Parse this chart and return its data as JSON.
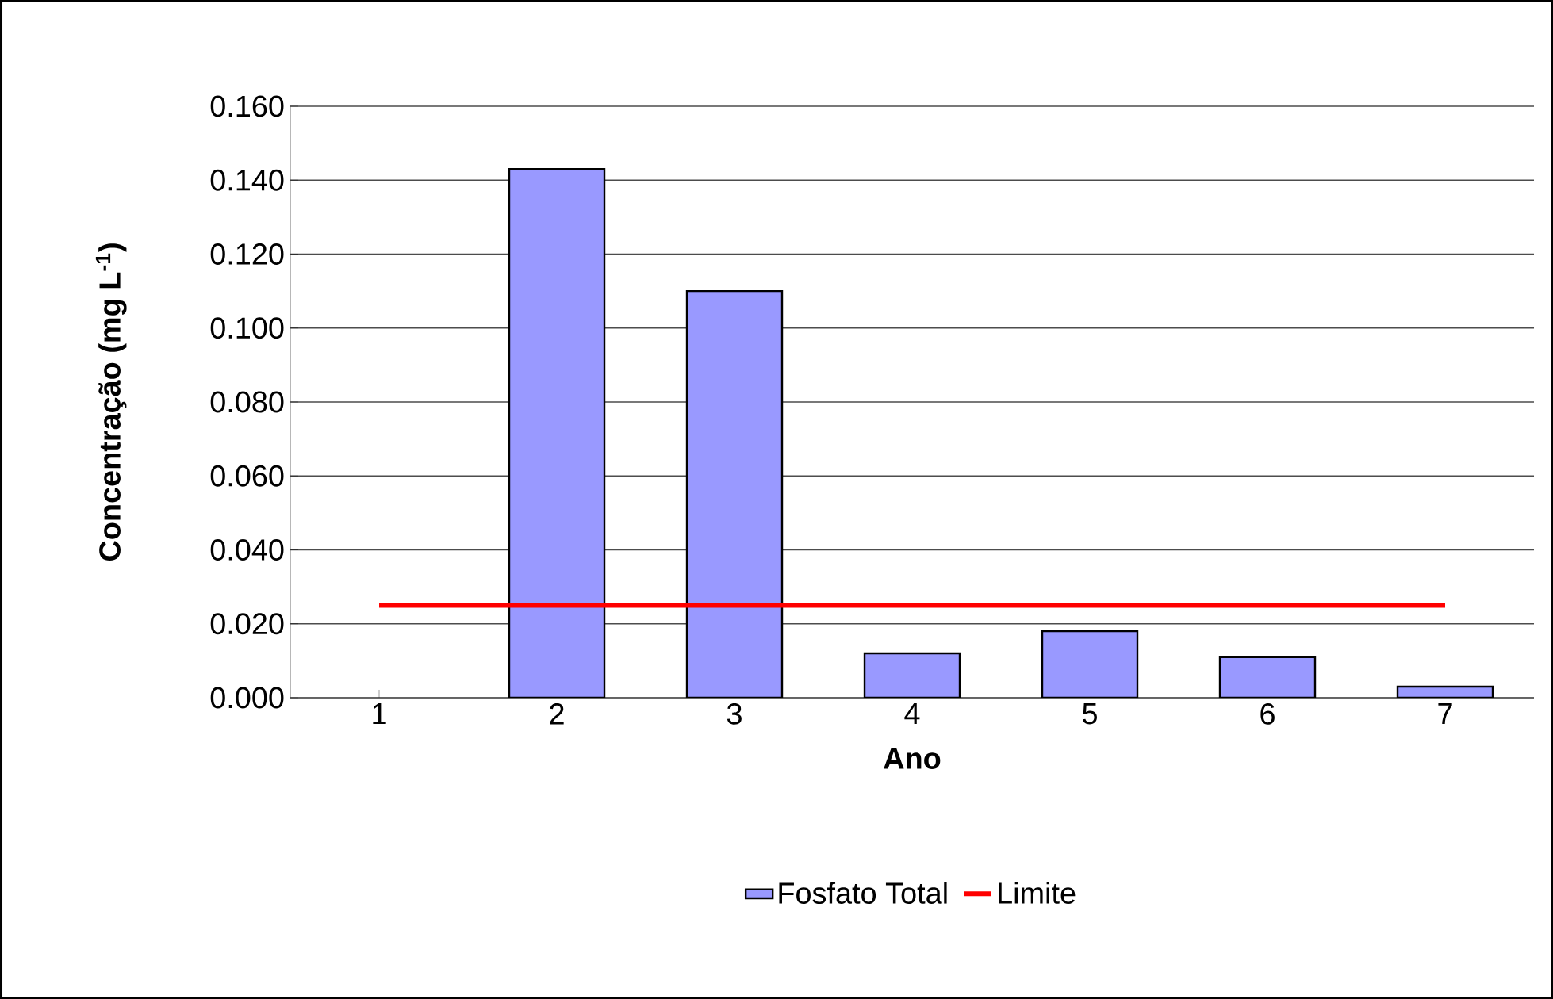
{
  "chart_data": {
    "type": "bar",
    "xlabel": "Ano",
    "ylabel": "Concentração (mg L$^{-1}$)",
    "categories": [
      "1",
      "2",
      "3",
      "4",
      "5",
      "6",
      "7"
    ],
    "series": [
      {
        "name": "Fosfato Total",
        "color": "#9999ff",
        "values": [
          null,
          0.143,
          0.11,
          0.012,
          0.018,
          0.011,
          0.003
        ]
      },
      {
        "name": "Limite",
        "type": "line",
        "color": "#ff0000",
        "values": [
          0.025,
          0.025,
          0.025,
          0.025,
          0.025,
          0.025,
          0.025
        ]
      }
    ],
    "ylim": [
      0,
      0.16
    ],
    "yticks": [
      {
        "value": 0,
        "label": "0.000"
      },
      {
        "value": 0.02,
        "label": "0.020"
      },
      {
        "value": 0.04,
        "label": "0.040"
      },
      {
        "value": 0.06,
        "label": "0.060"
      },
      {
        "value": 0.08,
        "label": "0.080"
      },
      {
        "value": 0.1,
        "label": "0.100"
      },
      {
        "value": 0.12,
        "label": "0.120"
      },
      {
        "value": 0.14,
        "label": "0.140"
      },
      {
        "value": 0.16,
        "label": "0.160"
      }
    ],
    "grid": "y",
    "legend": "bottom"
  }
}
